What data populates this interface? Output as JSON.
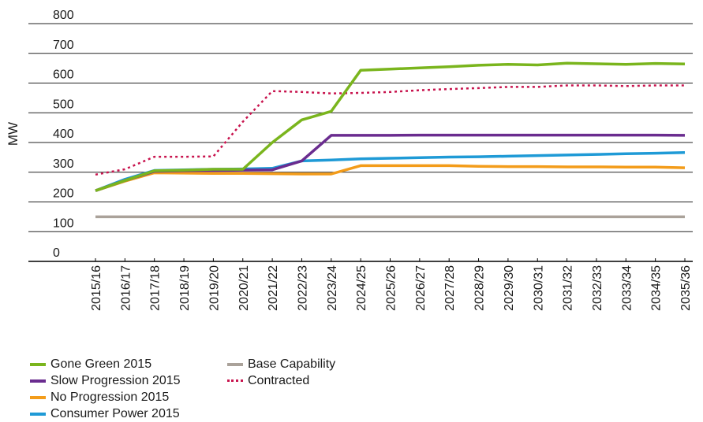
{
  "chart_data": {
    "type": "line",
    "ylabel": "MW",
    "xlabel": "",
    "ylim": [
      0,
      800
    ],
    "yticks": [
      0,
      100,
      200,
      300,
      400,
      500,
      600,
      700,
      800
    ],
    "grid": "horizontal",
    "legend_position": "bottom-left",
    "categories": [
      "2015/16",
      "2016/17",
      "2017/18",
      "2018/19",
      "2019/20",
      "2020/21",
      "2021/22",
      "2022/23",
      "2023/24",
      "2024/25",
      "2025/26",
      "2026/27",
      "2027/28",
      "2028/29",
      "2029/30",
      "2030/31",
      "2031/32",
      "2032/33",
      "2033/34",
      "2034/35",
      "2035/36"
    ],
    "series": [
      {
        "name": "Gone Green 2015",
        "color": "#7ab51d",
        "style": "solid",
        "values": [
          238,
          272,
          305,
          307,
          310,
          310,
          400,
          476,
          505,
          643,
          647,
          651,
          655,
          660,
          663,
          661,
          667,
          665,
          663,
          666,
          664
        ]
      },
      {
        "name": "Slow Progression 2015",
        "color": "#6a2c8f",
        "style": "solid",
        "values": [
          238,
          272,
          303,
          305,
          306,
          307,
          308,
          338,
          424,
          424,
          424,
          425,
          425,
          425,
          425,
          425,
          425,
          425,
          425,
          425,
          424
        ]
      },
      {
        "name": "No Progression 2015",
        "color": "#f39c1a",
        "style": "solid",
        "values": [
          238,
          270,
          298,
          297,
          296,
          296,
          295,
          294,
          294,
          322,
          322,
          322,
          322,
          320,
          319,
          319,
          318,
          318,
          317,
          317,
          315
        ]
      },
      {
        "name": "Consumer Power 2015",
        "color": "#1f9ad6",
        "style": "solid",
        "values": [
          238,
          276,
          306,
          308,
          310,
          311,
          313,
          338,
          341,
          345,
          347,
          349,
          351,
          352,
          354,
          356,
          358,
          360,
          362,
          364,
          366
        ]
      },
      {
        "name": "Base Capability",
        "color": "#aaa29a",
        "style": "solid",
        "values": [
          150,
          150,
          150,
          150,
          150,
          150,
          150,
          150,
          150,
          150,
          150,
          150,
          150,
          150,
          150,
          150,
          150,
          150,
          150,
          150,
          150
        ]
      },
      {
        "name": "Contracted",
        "color": "#c8144e",
        "style": "dotted",
        "values": [
          292,
          310,
          352,
          352,
          353,
          470,
          573,
          570,
          565,
          567,
          570,
          576,
          580,
          583,
          587,
          587,
          592,
          592,
          590,
          592,
          592
        ]
      }
    ]
  }
}
